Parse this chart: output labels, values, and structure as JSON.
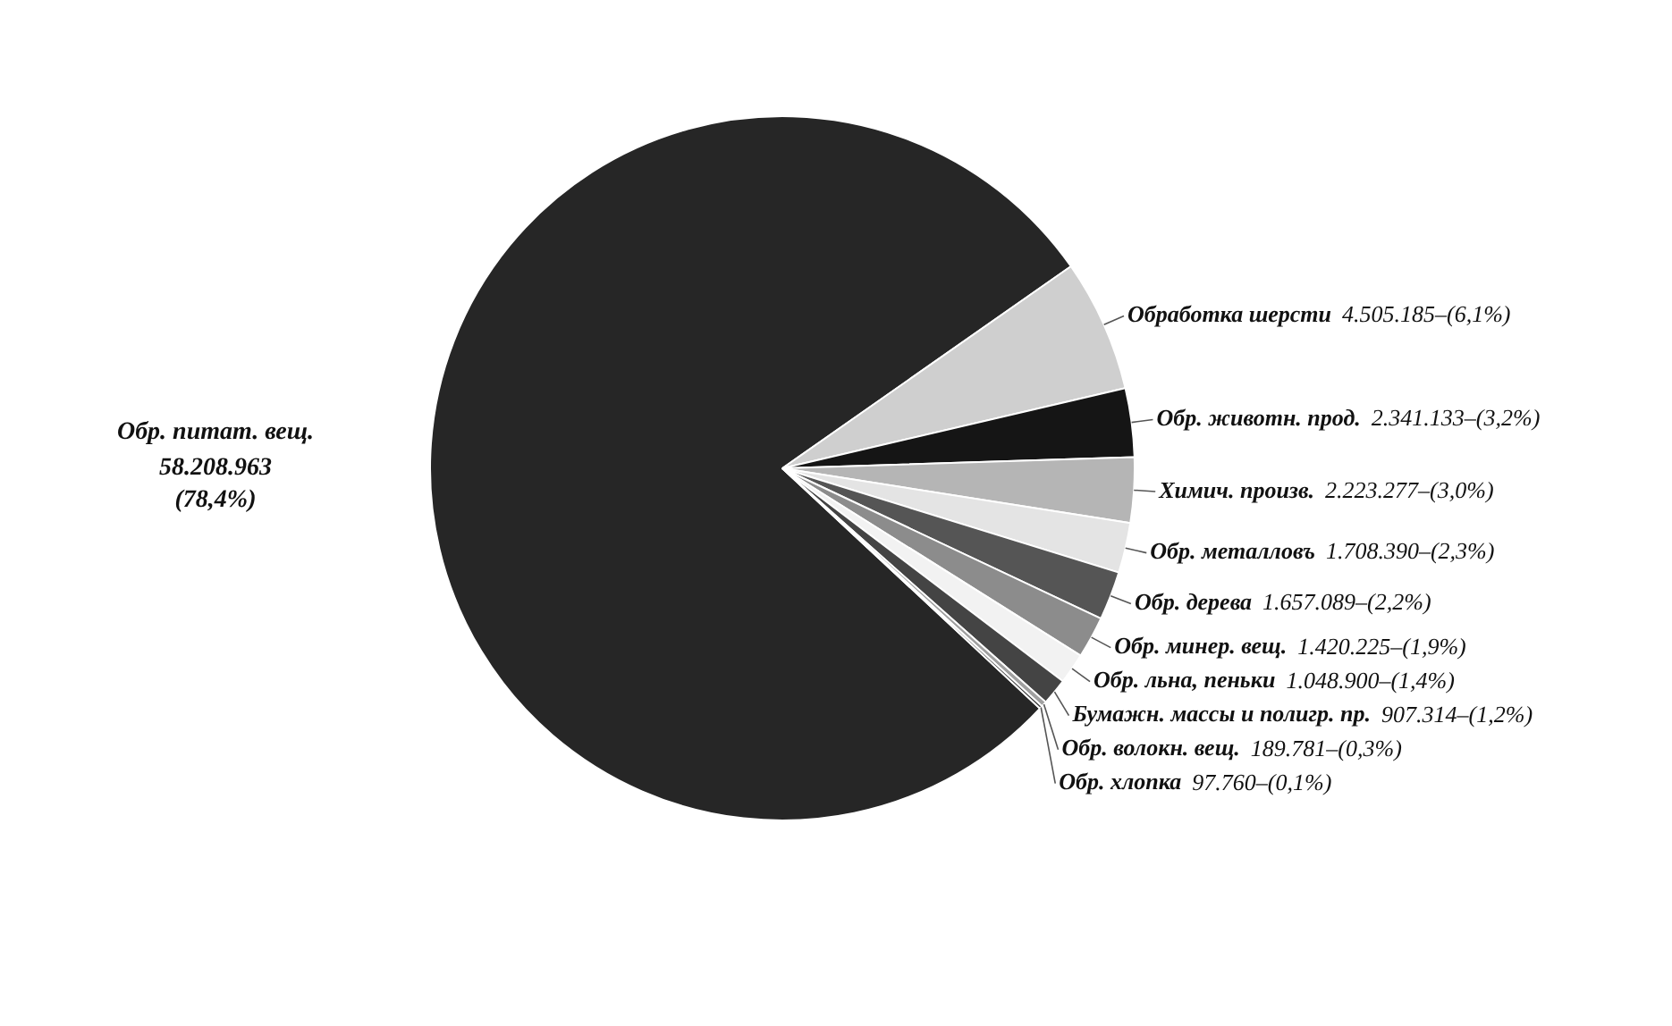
{
  "chart_data": {
    "type": "pie",
    "categories": [
      "Обр. питат. вещ.",
      "Обработка шерсти",
      "Обр. животн. прод.",
      "Химич. произв.",
      "Обр. металловъ",
      "Обр. дерева",
      "Обр. минер. вещ.",
      "Обр. льна, пеньки",
      "Бумажн. массы и полигр. пр.",
      "Обр. волокн. вещ.",
      "Обр. хлопка"
    ],
    "values": [
      58208963,
      4505185,
      2341133,
      2223277,
      1708390,
      1657089,
      1420225,
      1048900,
      907314,
      189781,
      97760
    ],
    "value_labels": [
      "58.208.963 (78,4%)",
      "4.505.185–(6,1%)",
      "2.341.133–(3,2%)",
      "2.223.277–(3,0%)",
      "1.708.390–(2,3%)",
      "1.657.089–(2,2%)",
      "1.420.225–(1,9%)",
      "1.048.900–(1,4%)",
      "907.314–(1,2%)",
      "189.781–(0,3%)",
      "97.760–(0,1%)"
    ],
    "colors": [
      "#262626",
      "#cfcfcf",
      "#151515",
      "#b5b5b5",
      "#e4e4e4",
      "#555555",
      "#8c8c8c",
      "#f2f2f2",
      "#444444",
      "#a0a0a0",
      "#333333"
    ]
  }
}
